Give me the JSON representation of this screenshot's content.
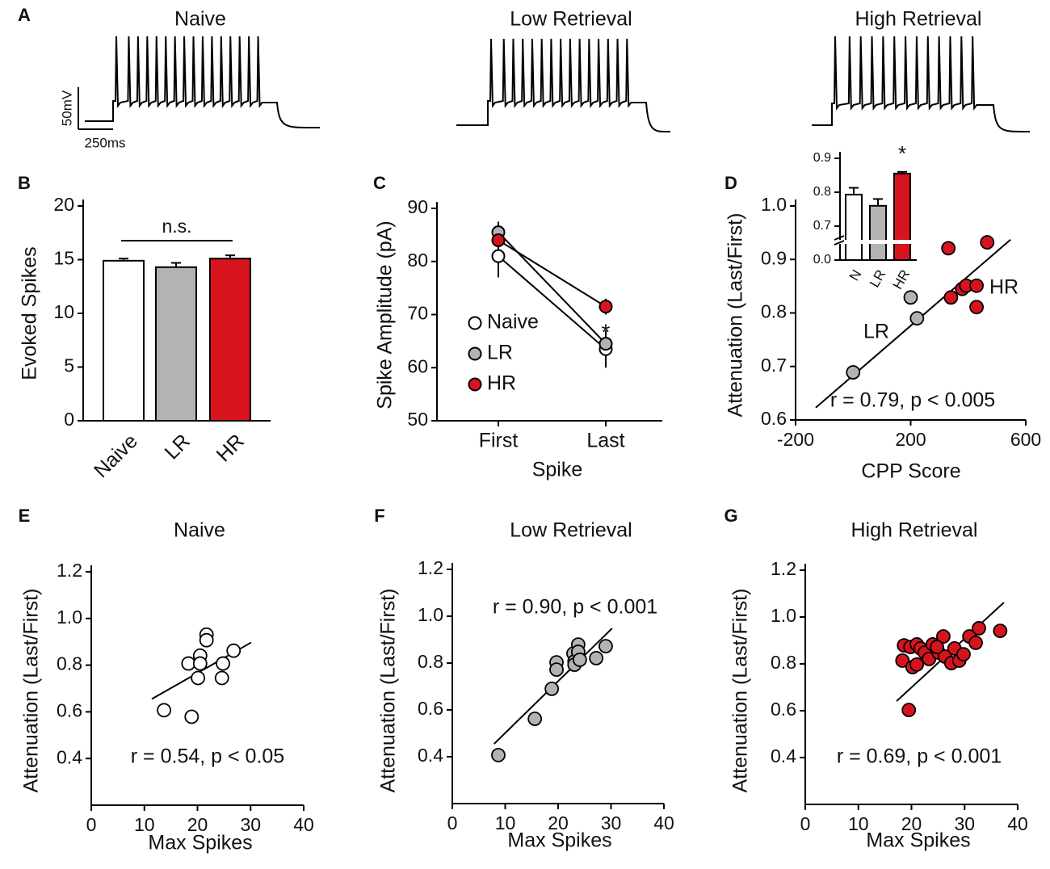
{
  "chart_data": [
    {
      "panel": "A",
      "type": "traces",
      "titles": [
        "Naive",
        "Low Retrieval",
        "High Retrieval"
      ],
      "scale_bar": {
        "y_label": "50mV",
        "x_label": "250ms"
      }
    },
    {
      "panel": "B",
      "type": "bar",
      "categories": [
        "Naive",
        "LR",
        "HR"
      ],
      "values": [
        14.9,
        14.3,
        15.1
      ],
      "errors": [
        0.2,
        0.4,
        0.3
      ],
      "colors": [
        "#ffffff",
        "#b3b3b3",
        "#d7141e"
      ],
      "ylabel": "Evoked Spikes",
      "ylim": [
        0,
        20
      ],
      "yticks": [
        0,
        5,
        10,
        15,
        20
      ],
      "annotation": "n.s."
    },
    {
      "panel": "C",
      "type": "line",
      "categories": [
        "First",
        "Last"
      ],
      "series": [
        {
          "name": "Naive",
          "color": "#ffffff",
          "values": [
            81,
            63.5
          ],
          "errors": [
            4,
            3.5
          ]
        },
        {
          "name": "LR",
          "color": "#b3b3b3",
          "values": [
            85.5,
            64.5
          ],
          "errors": [
            2,
            1.5
          ]
        },
        {
          "name": "HR",
          "color": "#d7141e",
          "values": [
            84,
            71.5
          ],
          "errors": [
            1.5,
            1.5
          ]
        }
      ],
      "xlabel": "Spike",
      "ylabel": "Spike Amplitude (pA)",
      "ylim": [
        50,
        90
      ],
      "yticks": [
        50,
        60,
        70,
        80,
        90
      ],
      "annotation": "*"
    },
    {
      "panel": "D",
      "type": "scatter",
      "series": [
        {
          "name": "LR",
          "color": "#b3b3b3",
          "x": [
            0,
            200,
            222
          ],
          "y": [
            0.689,
            0.829,
            0.79
          ]
        },
        {
          "name": "HR",
          "color": "#d7141e",
          "x": [
            331,
            340,
            379,
            393,
            429,
            429,
            466
          ],
          "y": [
            0.921,
            0.829,
            0.845,
            0.851,
            0.851,
            0.811,
            0.932
          ]
        }
      ],
      "fit": {
        "x": [
          -130,
          547
        ],
        "y": [
          0.623,
          0.937
        ]
      },
      "xlabel": "CPP Score",
      "ylabel": "Attenuation (Last/First)",
      "xlim": [
        -200,
        600
      ],
      "xticks": [
        -200,
        200,
        600
      ],
      "ylim": [
        0.6,
        1.0
      ],
      "yticks": [
        0.6,
        0.7,
        0.8,
        0.9,
        {
          "value": 1,
          "label": "1.0"
        }
      ],
      "annotation": "r = 0.79, p < 0.005",
      "inset": {
        "type": "bar",
        "categories": [
          "N",
          "LR",
          "HR"
        ],
        "values": [
          0.793,
          0.76,
          0.855
        ],
        "errors": [
          0.02,
          0.02,
          0.005
        ],
        "colors": [
          "#ffffff",
          "#b3b3b3",
          "#d7141e"
        ],
        "ylim": [
          0.6,
          0.9
        ],
        "axis_break": true,
        "yticks": [
          {
            "value": 0,
            "label": "0.0"
          },
          0.7,
          0.8,
          0.9
        ],
        "annotation": "*"
      }
    },
    {
      "panel": "E",
      "type": "scatter",
      "title": "Naive",
      "series": [
        {
          "color": "#ffffff",
          "x": [
            21.7,
            21.7,
            20.5,
            18.3,
            20.5,
            26.8,
            24.8,
            24.6,
            20.1,
            13.7,
            18.9
          ],
          "y": [
            0.931,
            0.907,
            0.841,
            0.807,
            0.807,
            0.862,
            0.807,
            0.745,
            0.745,
            0.607,
            0.579
          ]
        }
      ],
      "fit": {
        "x": [
          11.4,
          30.1
        ],
        "y": [
          0.655,
          0.897
        ]
      },
      "xlabel": "Max Spikes",
      "ylabel": "Attenuation (Last/First)",
      "xlim": [
        0,
        40
      ],
      "xticks": [
        0,
        10,
        20,
        30,
        40
      ],
      "ylim": [
        0.2,
        1.2
      ],
      "yticks": [
        0.4,
        0.6,
        0.8,
        {
          "value": 1,
          "label": "1.0"
        },
        1.2
      ],
      "annotation": "r = 0.54, p < 0.05"
    },
    {
      "panel": "F",
      "type": "scatter",
      "title": "Low Retrieval",
      "series": [
        {
          "color": "#b3b3b3",
          "x": [
            8.7,
            15.6,
            18.8,
            19.7,
            19.7,
            22.9,
            23.1,
            23.1,
            23.8,
            23.8,
            24.1,
            27.2,
            29.0
          ],
          "y": [
            0.407,
            0.562,
            0.69,
            0.803,
            0.772,
            0.841,
            0.807,
            0.793,
            0.879,
            0.848,
            0.814,
            0.821,
            0.872
          ]
        }
      ],
      "fit": {
        "x": [
          7.9,
          30.2
        ],
        "y": [
          0.455,
          0.948
        ]
      },
      "xlabel": "Max Spikes",
      "ylabel": "Attenuation (Last/First)",
      "xlim": [
        0,
        40
      ],
      "xticks": [
        0,
        10,
        20,
        30,
        40
      ],
      "ylim": [
        0.2,
        1.2
      ],
      "yticks": [
        0.4,
        0.6,
        0.8,
        {
          "value": 1,
          "label": "1.0"
        },
        1.2
      ],
      "annotation": "r = 0.90, p < 0.001"
    },
    {
      "panel": "G",
      "type": "scatter",
      "title": "High Retrieval",
      "series": [
        {
          "color": "#d7141e",
          "x": [
            19.5,
            18.3,
            18.6,
            19.8,
            20.2,
            21,
            21.7,
            22.5,
            23.3,
            24,
            25.1,
            26,
            26.3,
            27.5,
            28.1,
            29,
            29.8,
            30.9,
            32.1,
            32.7,
            36.7,
            24.8,
            21
          ],
          "y": [
            0.603,
            0.814,
            0.879,
            0.872,
            0.786,
            0.883,
            0.866,
            0.848,
            0.821,
            0.883,
            0.848,
            0.917,
            0.831,
            0.803,
            0.866,
            0.814,
            0.841,
            0.917,
            0.89,
            0.952,
            0.941,
            0.872,
            0.797
          ]
        }
      ],
      "fit": {
        "x": [
          17.2,
          37.4
        ],
        "y": [
          0.641,
          1.062
        ]
      },
      "xlabel": "Max Spikes",
      "ylabel": "Attenuation (Last/First)",
      "xlim": [
        0,
        40
      ],
      "xticks": [
        0,
        10,
        20,
        30,
        40
      ],
      "ylim": [
        0.2,
        1.2
      ],
      "yticks": [
        0.4,
        0.6,
        0.8,
        {
          "value": 1,
          "label": "1.0"
        },
        1.2
      ],
      "annotation": "r = 0.69, p < 0.001"
    }
  ]
}
